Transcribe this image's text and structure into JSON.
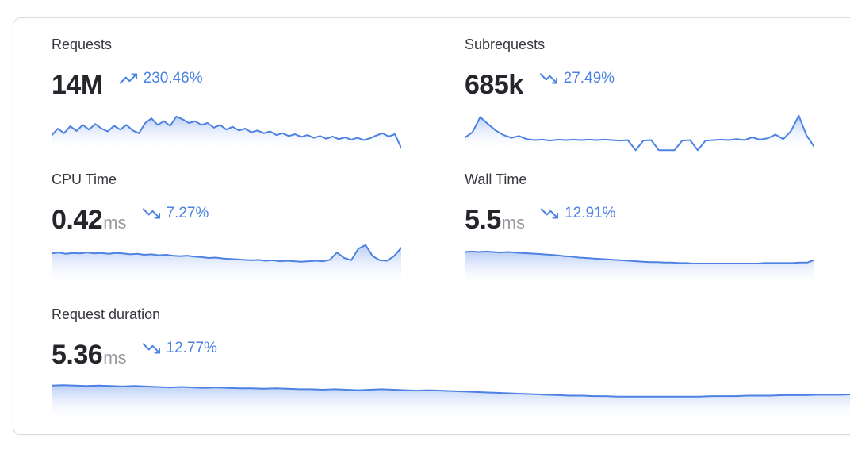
{
  "colors": {
    "chart_line": "#4d82e2",
    "chart_fill_top": "#7fa4ef",
    "trend_blue": "#4d82e2",
    "value_dark": "#24262b",
    "label_dark": "#35383d",
    "unit_gray": "#97979d",
    "card_border": "#dbdbdf"
  },
  "cards": [
    {
      "label": "Requests",
      "value": "14M",
      "unit": "",
      "trend_direction": "up",
      "trend": "230.46%"
    },
    {
      "label": "Subrequests",
      "value": "685k",
      "unit": "",
      "trend_direction": "down",
      "trend": "27.49%"
    },
    {
      "label": "CPU Time",
      "value": "0.42",
      "unit": "ms",
      "trend_direction": "down",
      "trend": "7.27%"
    },
    {
      "label": "Wall Time",
      "value": "5.5",
      "unit": "ms",
      "trend_direction": "down",
      "trend": "12.91%"
    },
    {
      "label": "Request duration",
      "value": "5.36",
      "unit": "ms",
      "trend_direction": "down",
      "trend": "12.77%"
    }
  ],
  "chart_data": [
    {
      "type": "area",
      "metric": "Requests",
      "axes_shown": false,
      "y_scale": "relative-0-100",
      "values": [
        35,
        50,
        40,
        55,
        45,
        58,
        48,
        60,
        50,
        44,
        56,
        48,
        58,
        46,
        40,
        62,
        72,
        58,
        66,
        56,
        76,
        70,
        62,
        66,
        58,
        62,
        52,
        58,
        48,
        54,
        46,
        50,
        42,
        46,
        40,
        44,
        36,
        40,
        34,
        38,
        32,
        36,
        30,
        34,
        28,
        33,
        27,
        31,
        26,
        30,
        25,
        29,
        35,
        40,
        33,
        38,
        8
      ]
    },
    {
      "type": "area",
      "metric": "Subrequests",
      "axes_shown": false,
      "y_scale": "relative-0-100",
      "values": [
        30,
        42,
        75,
        60,
        46,
        36,
        30,
        34,
        27,
        25,
        26,
        24,
        26,
        25,
        26,
        25,
        26,
        25,
        26,
        25,
        24,
        25,
        3,
        24,
        25,
        3,
        3,
        3,
        24,
        25,
        3,
        24,
        25,
        26,
        25,
        27,
        25,
        31,
        26,
        29,
        37,
        27,
        45,
        78,
        35,
        10
      ]
    },
    {
      "type": "area",
      "metric": "CPU Time",
      "axes_shown": false,
      "y_scale": "relative-0-100",
      "values": [
        72,
        74,
        71,
        73,
        72,
        74,
        72,
        73,
        71,
        73,
        72,
        70,
        71,
        69,
        70,
        68,
        69,
        67,
        66,
        67,
        65,
        64,
        62,
        63,
        61,
        60,
        59,
        58,
        57,
        58,
        56,
        57,
        55,
        56,
        55,
        54,
        55,
        56,
        55,
        58,
        74,
        62,
        57,
        82,
        90,
        66,
        57,
        56,
        66,
        84
      ]
    },
    {
      "type": "area",
      "metric": "Wall Time",
      "axes_shown": false,
      "y_scale": "relative-0-100",
      "values": [
        75,
        76,
        75,
        76,
        75,
        74,
        75,
        74,
        73,
        72,
        71,
        70,
        69,
        68,
        66,
        65,
        63,
        62,
        61,
        60,
        59,
        58,
        57,
        56,
        55,
        54,
        53,
        53,
        52,
        52,
        51,
        51,
        50,
        50,
        50,
        50,
        50,
        50,
        50,
        50,
        50,
        50,
        51,
        51,
        51,
        51,
        51,
        52,
        52,
        58
      ]
    },
    {
      "type": "area",
      "metric": "Request duration",
      "axes_shown": false,
      "y_scale": "relative-0-100",
      "values": [
        78,
        79,
        78,
        77,
        78,
        77,
        76,
        77,
        76,
        75,
        74,
        75,
        74,
        73,
        74,
        73,
        72,
        72,
        71,
        72,
        71,
        70,
        70,
        69,
        70,
        69,
        68,
        69,
        70,
        69,
        68,
        67,
        68,
        67,
        66,
        65,
        64,
        63,
        62,
        61,
        60,
        59,
        58,
        57,
        56,
        56,
        55,
        55,
        54,
        54,
        54,
        54,
        54,
        54,
        54,
        54,
        55,
        55,
        55,
        56,
        56,
        56,
        57,
        57,
        57,
        58,
        58,
        58,
        59,
        59
      ]
    }
  ]
}
